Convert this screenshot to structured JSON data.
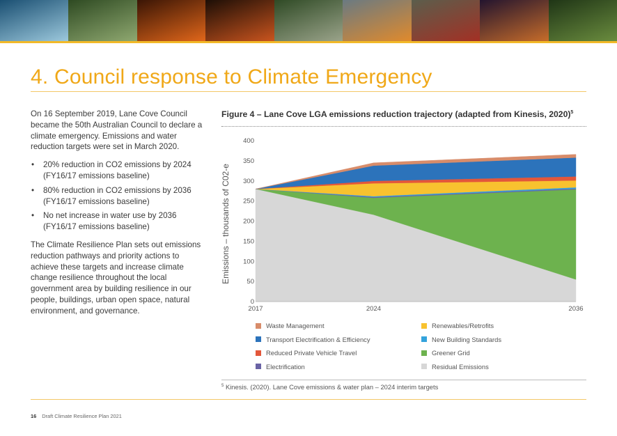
{
  "banner": {
    "tiles": [
      {
        "name": "wave",
        "from": "#1a4f72",
        "to": "#9cc8dc"
      },
      {
        "name": "house",
        "from": "#2e4a22",
        "to": "#8fa870"
      },
      {
        "name": "bushfire",
        "from": "#3a1505",
        "to": "#e0661a"
      },
      {
        "name": "firefighters",
        "from": "#1c0e06",
        "to": "#c9541e"
      },
      {
        "name": "green-building",
        "from": "#2f4a25",
        "to": "#9aa38a"
      },
      {
        "name": "flood-sign",
        "from": "#6a7a82",
        "to": "#e08a2c"
      },
      {
        "name": "flooded-car",
        "from": "#5b5e4c",
        "to": "#a33024"
      },
      {
        "name": "lightning",
        "from": "#23142e",
        "to": "#c66c2a"
      },
      {
        "name": "rainforest",
        "from": "#1f3516",
        "to": "#6a8c3e"
      }
    ]
  },
  "section": {
    "number": "4.",
    "title": "Council response to Climate Emergency"
  },
  "body": {
    "intro": "On 16 September 2019, Lane Cove Council became the 50th Australian Council to declare a climate emergency. Emissions and water reduction targets were set in March 2020.",
    "bullets": [
      {
        "line1": "20% reduction in CO2 emissions by 2024",
        "line2": "(FY16/17 emissions baseline)"
      },
      {
        "line1": "80% reduction in CO2 emissions by 2036",
        "line2": "(FY16/17 emissions baseline)"
      },
      {
        "line1": "No net increase in water use by 2036",
        "line2": "(FY16/17 emissions baseline)"
      }
    ],
    "closing": "The Climate Resilience Plan sets out emissions reduction pathways and priority actions to achieve these targets and increase climate change resilience throughout the local government area by building resilience in our people, buildings, urban open space, natural environment, and governance."
  },
  "figure": {
    "title": "Figure 4 – Lane Cove LGA emissions reduction trajectory (adapted from Kinesis, 2020)",
    "title_sup": "5"
  },
  "chart_data": {
    "type": "area",
    "stacked": true,
    "x": [
      2017,
      2024,
      2036
    ],
    "x_tick_labels": [
      "2017",
      "2024",
      "2036"
    ],
    "ylabel": "Emissions – thousands of C02-e",
    "ylim": [
      0,
      400
    ],
    "y_ticks": [
      0,
      50,
      100,
      150,
      200,
      250,
      300,
      350,
      400
    ],
    "series": [
      {
        "name": "Residual Emissions",
        "color": "#d7d7d7",
        "values": [
          280,
          216,
          55
        ]
      },
      {
        "name": "Greener Grid",
        "color": "#6db24e",
        "values": [
          0,
          42,
          224
        ]
      },
      {
        "name": "Electrification",
        "color": "#6a63a5",
        "values": [
          0,
          2,
          2
        ]
      },
      {
        "name": "New Building Standards",
        "color": "#34a3dc",
        "values": [
          0,
          2,
          3
        ]
      },
      {
        "name": "Renewables/Retrofits",
        "color": "#f8c22f",
        "values": [
          0,
          32,
          17
        ]
      },
      {
        "name": "Reduced Private Vehicle Travel",
        "color": "#e3573a",
        "values": [
          0,
          6,
          10
        ]
      },
      {
        "name": "Transport Electrification & Efficiency",
        "color": "#2c73bb",
        "values": [
          0,
          38,
          47
        ]
      },
      {
        "name": "Waste Management",
        "color": "#d88c6a",
        "values": [
          0,
          7,
          8
        ]
      }
    ],
    "legend": [
      {
        "label": "Waste Management",
        "color": "#d88c6a"
      },
      {
        "label": "Renewables/Retrofits",
        "color": "#f8c22f"
      },
      {
        "label": "Transport Electrification & Efficiency",
        "color": "#2c73bb"
      },
      {
        "label": "New Building Standards",
        "color": "#34a3dc"
      },
      {
        "label": "Reduced Private Vehicle Travel",
        "color": "#e3573a"
      },
      {
        "label": "Greener Grid",
        "color": "#6db24e"
      },
      {
        "label": "Electrification",
        "color": "#6a63a5"
      },
      {
        "label": "Residual Emissions",
        "color": "#d7d7d7"
      }
    ]
  },
  "footnote": {
    "sup": "5",
    "text": "Kinesis. (2020). Lane Cove emissions & water plan – 2024 interim targets"
  },
  "footer": {
    "page_number": "16",
    "doc_title": "Draft Climate Resilience Plan 2021"
  }
}
